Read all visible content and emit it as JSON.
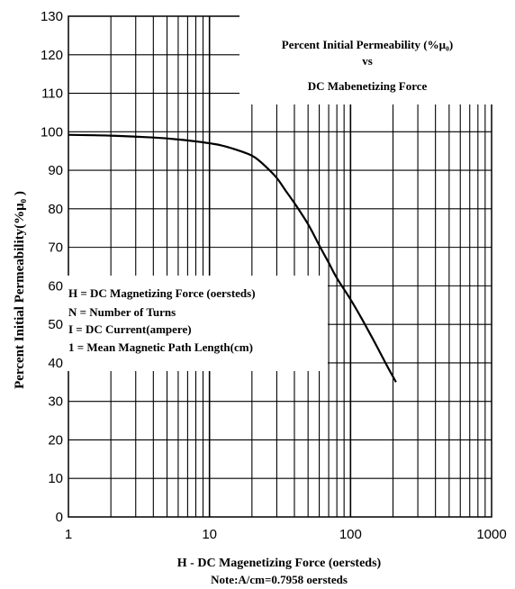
{
  "chart_data": {
    "type": "line",
    "title_lines": [
      "Percent Initial Permeability (%μ₀)",
      "vs",
      "DC Mabenetizing Force"
    ],
    "xlabel": "H - DC Magenetizing Force (oersteds)",
    "note": "Note:A/cm=0.7958 oersteds",
    "ylabel": "Percent Initial Permeability(%μ₀ )",
    "x_scale": "log",
    "xlim": [
      1,
      1000
    ],
    "ylim": [
      0,
      130
    ],
    "x_ticks": [
      1,
      10,
      100,
      1000
    ],
    "x_tick_labels": [
      "1",
      "10",
      "100",
      "1000"
    ],
    "y_ticks": [
      0,
      10,
      20,
      30,
      40,
      50,
      60,
      70,
      80,
      90,
      100,
      110,
      120,
      130
    ],
    "y_tick_labels": [
      "0",
      "10",
      "20",
      "30",
      "40",
      "50",
      "60",
      "70",
      "80",
      "90",
      "100",
      "110",
      "120",
      "130"
    ],
    "grid": true,
    "legend_lines": [
      "H = DC Magnetizing Force (oersteds)",
      "N = Number of Turns",
      "I = DC Current(ampere)",
      "1 = Mean Magnetic Path Length(cm)"
    ],
    "series": [
      {
        "x": [
          1,
          2,
          4,
          6,
          8,
          10,
          12,
          15,
          18,
          20,
          22,
          25,
          30,
          35,
          40,
          50,
          60,
          70,
          80,
          100,
          120,
          150,
          180,
          210
        ],
        "y": [
          99.2,
          99,
          98.5,
          98,
          97.5,
          97,
          96.5,
          95.5,
          94.5,
          93.8,
          92.8,
          91,
          88,
          84.5,
          81.5,
          76,
          70.5,
          66,
          62,
          56.5,
          51.5,
          45,
          39.5,
          35
        ]
      }
    ]
  }
}
